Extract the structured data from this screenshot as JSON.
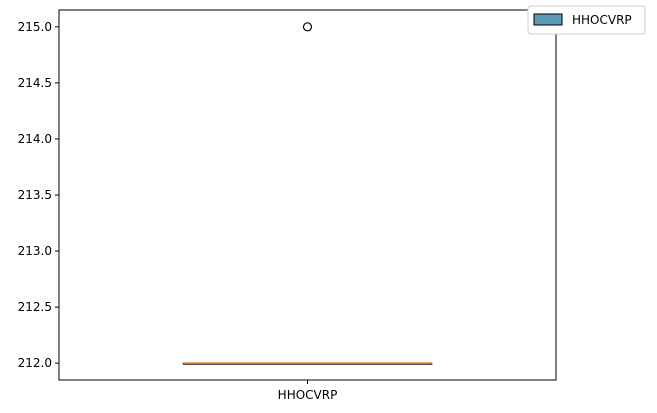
{
  "chart_data": {
    "type": "box",
    "title": "",
    "xlabel": "",
    "ylabel": "",
    "categories": [
      "HHOCVRP"
    ],
    "series": [
      {
        "name": "HHOCVRP",
        "whisker_low": 212.0,
        "q1": 212.0,
        "median": 212.0,
        "q3": 212.0,
        "whisker_high": 212.0,
        "outliers": [
          215.0
        ]
      }
    ],
    "ylim": [
      211.85,
      215.15
    ],
    "yticks": [
      212.0,
      212.5,
      213.0,
      213.5,
      214.0,
      214.5,
      215.0
    ],
    "ytick_labels": [
      "212.0",
      "212.5",
      "213.0",
      "213.5",
      "214.0",
      "214.5",
      "215.0"
    ],
    "grid": false,
    "legend": {
      "position": "top-right, outside plot",
      "entries": [
        "HHOCVRP"
      ]
    },
    "colors": {
      "box_fill": "#5a9cb5",
      "median_line": "#ff7f0e",
      "outline": "#000000"
    }
  }
}
